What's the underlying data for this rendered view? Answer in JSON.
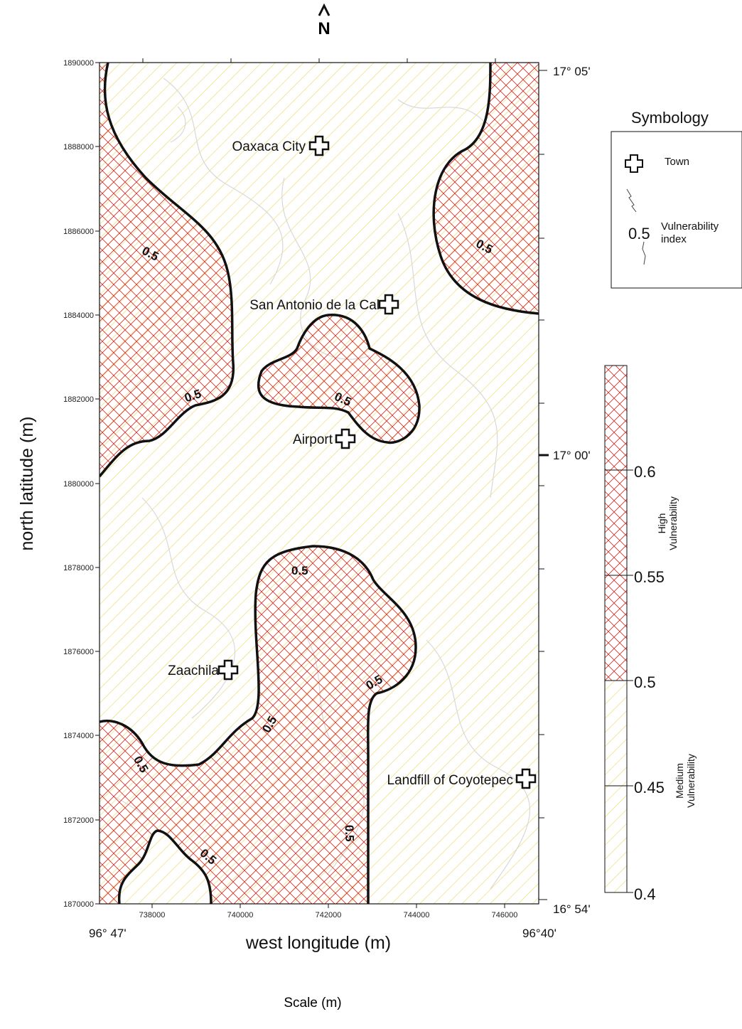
{
  "north_arrow": "N",
  "y_axis_label": "north latitude (m)",
  "x_axis_label": "west longitude (m)",
  "y_ticks": [
    "1890000",
    "1888000",
    "1886000",
    "1884000",
    "1882000",
    "1880000",
    "1878000",
    "1876000",
    "1874000",
    "1872000",
    "1870000"
  ],
  "x_ticks": [
    "738000",
    "740000",
    "742000",
    "744000",
    "746000"
  ],
  "lat_labels": {
    "top": "17° 05'",
    "mid": "17° 00'",
    "bottom": "16° 54'"
  },
  "lon_labels": {
    "left": "96° 47'",
    "right": "96°40'"
  },
  "towns": [
    "Oaxaca City",
    "San Antonio de la Cal",
    "Airport",
    "Zaachila",
    "Landfill of Coyotepec"
  ],
  "contour_label": "0.5",
  "symbology": {
    "title": "Symbology",
    "town": "Town",
    "contour_value": "0.5",
    "vulnerability_line1": "Vulnerability",
    "vulnerability_line2": "index"
  },
  "scale_bar": {
    "ticks": [
      "0.6",
      "0.55",
      "0.5",
      "0.45",
      "0.4"
    ],
    "high_line1": "High",
    "high_line2": "Vulnerability",
    "medium_line1": "Medium",
    "medium_line2": "Vulnerability"
  },
  "scale_label": "Scale (m)",
  "colors": {
    "high": "#d9352f",
    "medium": "#e9d95a",
    "contour": "#111111"
  }
}
